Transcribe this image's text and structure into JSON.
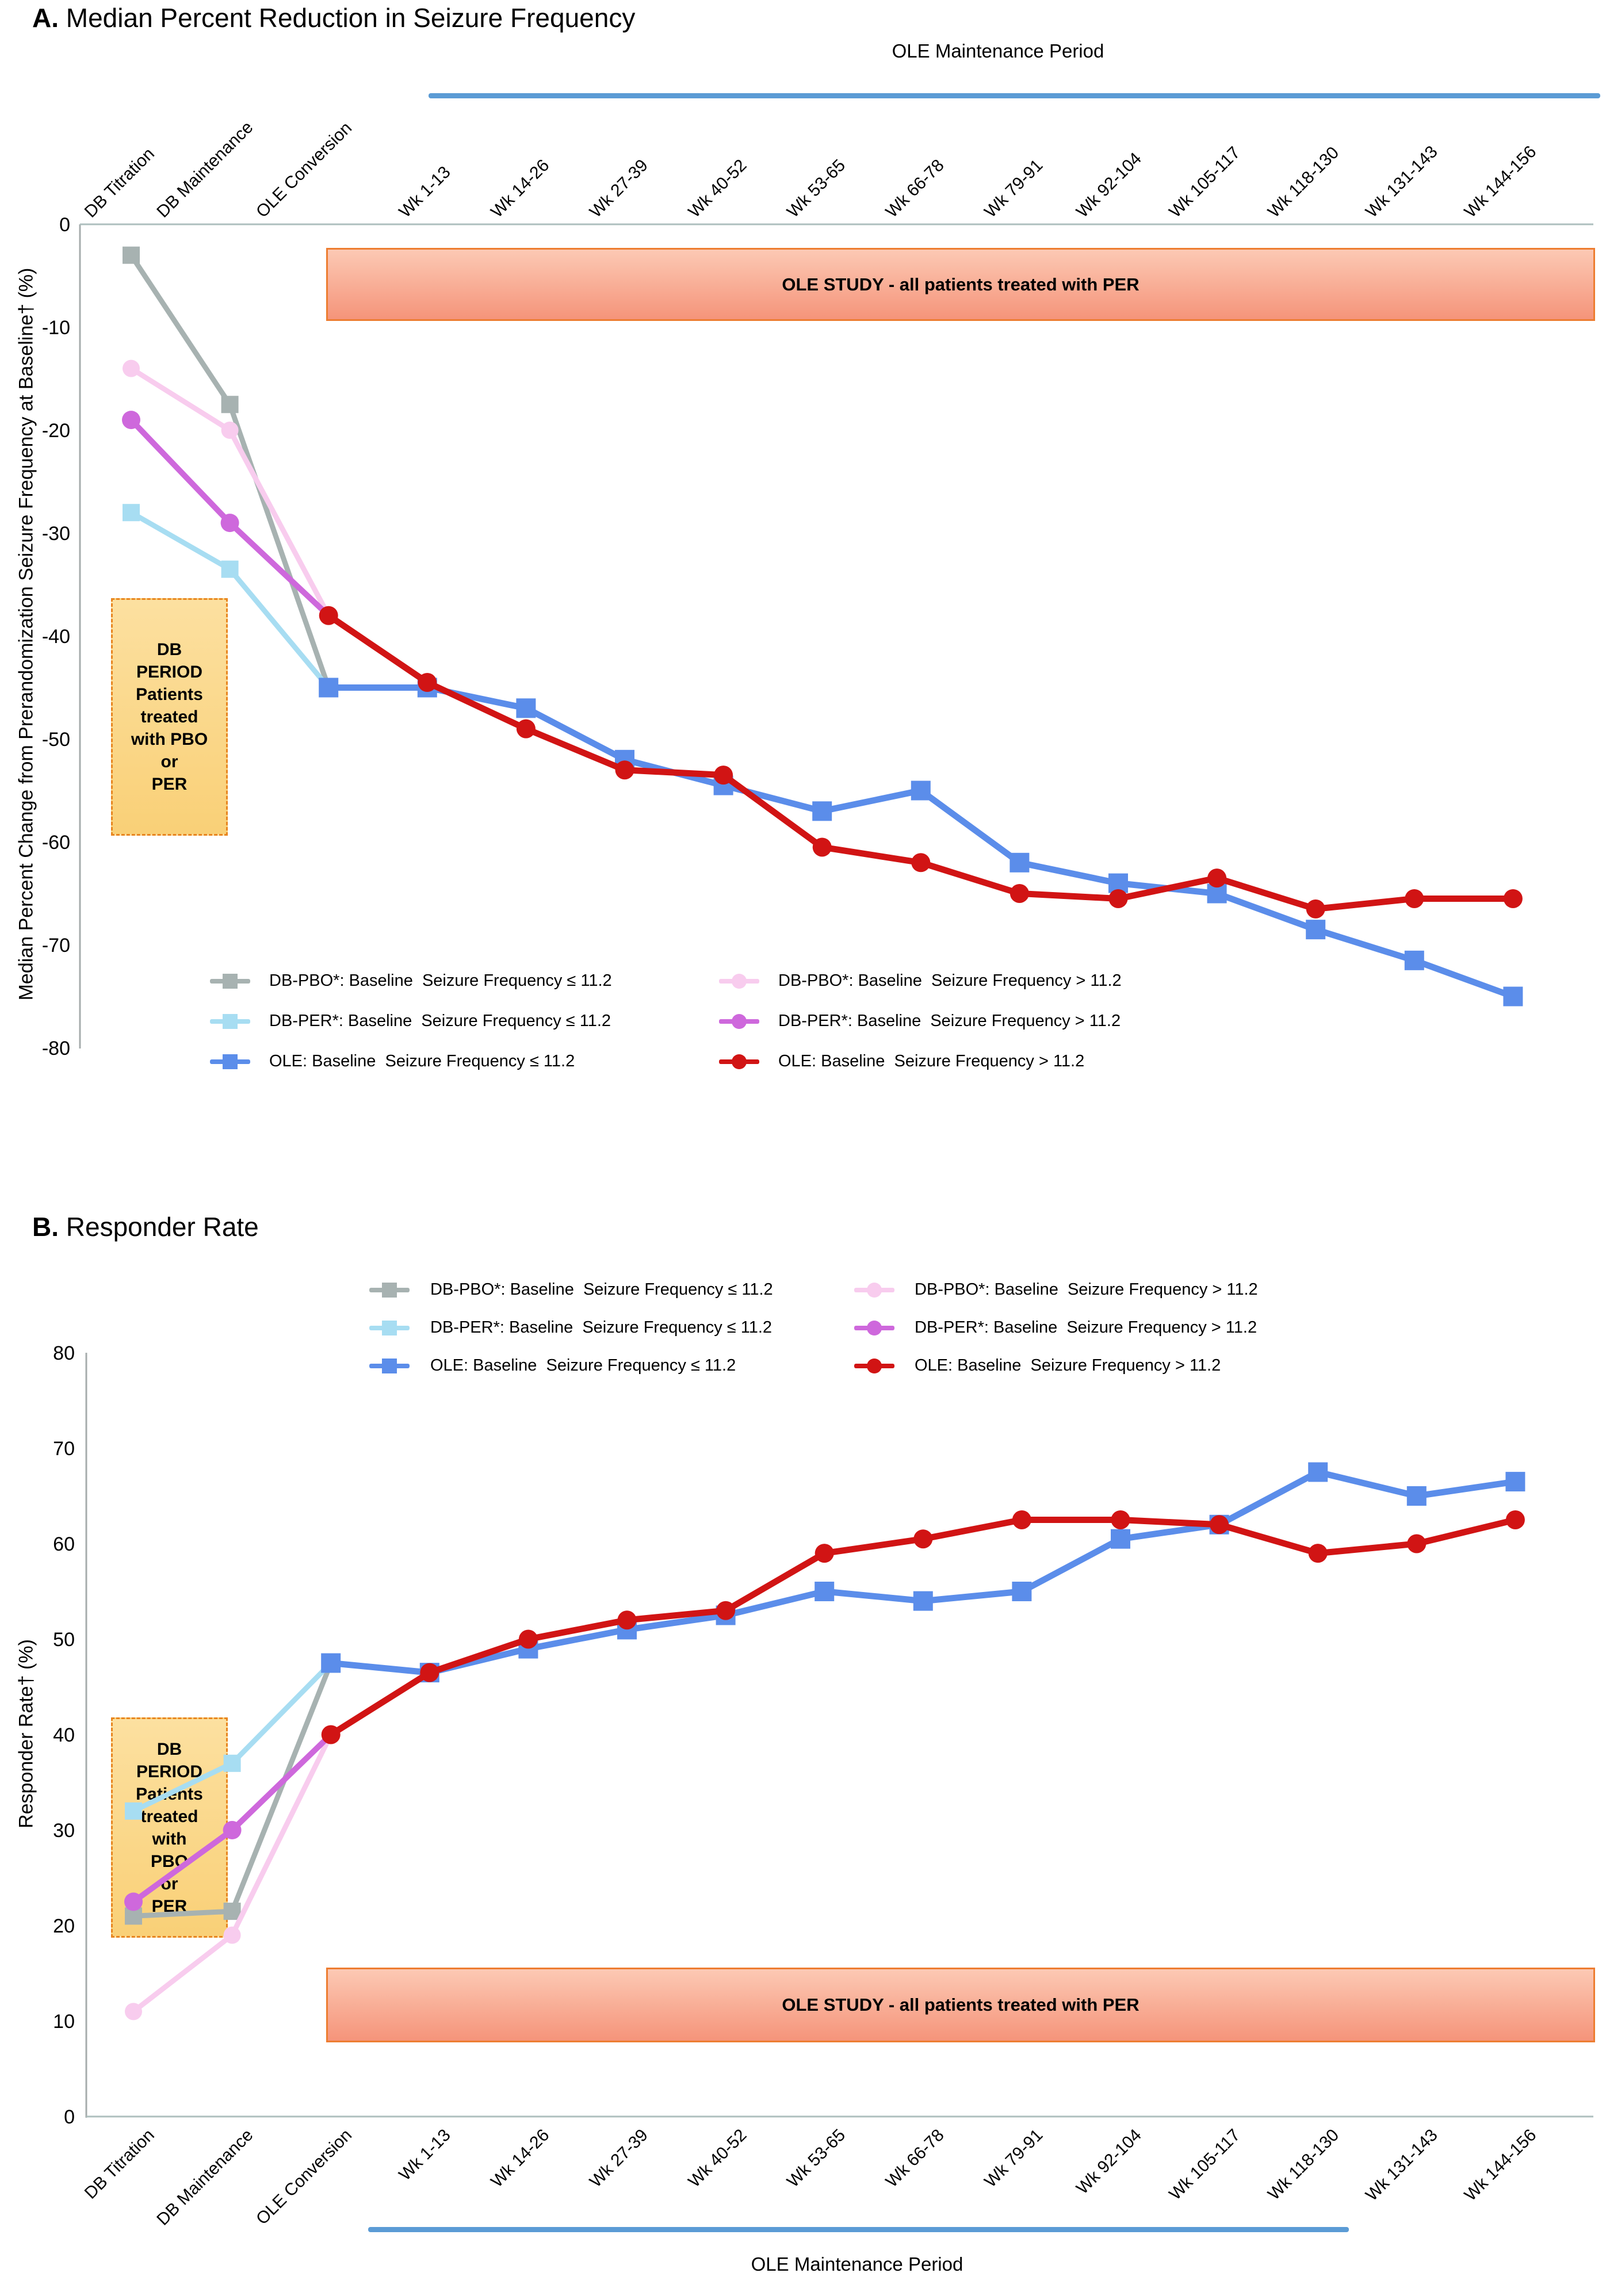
{
  "chart_data": [
    {
      "type": "line",
      "panel": "A",
      "title_prefix": "A.",
      "title": " Median Percent Reduction in Seizure Frequency",
      "ylabel": "Median Percent Change from Prerandomization Seizure Frequency at Baseline† (%)",
      "ylim": [
        -80,
        0
      ],
      "yticks": [
        0,
        -10,
        -20,
        -30,
        -40,
        -50,
        -60,
        -70,
        -80
      ],
      "grid": false,
      "legend_position": "inside-bottom",
      "maintenance_label": "OLE Maintenance Period",
      "banner_text": "OLE STUDY - all patients treated with PER",
      "db_period_text": "DB\nPERIOD\nPatients\ntreated\nwith PBO\nor\nPER",
      "categories": [
        "DB Titration",
        "DB Maintenance",
        "OLE Conversion",
        "Wk 1-13",
        "Wk 14-26",
        "Wk 27-39",
        "Wk 40-52",
        "Wk 53-65",
        "Wk 66-78",
        "Wk 79-91",
        "Wk 92-104",
        "Wk 105-117",
        "Wk 118-130",
        "Wk 131-143",
        "Wk 144-156"
      ],
      "series": [
        {
          "name": "DB-PBO: Baseline Seizure Frequency ≤ 11.2",
          "color": "#A7B2B1",
          "marker": "square",
          "width": 9,
          "msize": 30,
          "values": [
            -3,
            -17.5,
            -45,
            null,
            null,
            null,
            null,
            null,
            null,
            null,
            null,
            null,
            null,
            null,
            null
          ]
        },
        {
          "name": "DB-PBO: Baseline Seizure Frequency > 11.2",
          "color": "#F8CCEE",
          "marker": "circle",
          "width": 9,
          "msize": 30,
          "values": [
            -14,
            -20,
            -38,
            null,
            null,
            null,
            null,
            null,
            null,
            null,
            null,
            null,
            null,
            null,
            null
          ]
        },
        {
          "name": "DB-PER: Baseline Seizure Frequency ≤ 11.2",
          "color": "#A7DDF2",
          "marker": "square",
          "width": 9,
          "msize": 30,
          "values": [
            -28,
            -33.5,
            -45,
            null,
            null,
            null,
            null,
            null,
            null,
            null,
            null,
            null,
            null,
            null,
            null
          ]
        },
        {
          "name": "DB-PER: Baseline Seizure Frequency > 11.2",
          "color": "#CE68DC",
          "marker": "circle",
          "width": 10,
          "msize": 32,
          "values": [
            -19,
            -29,
            -38,
            null,
            null,
            null,
            null,
            null,
            null,
            null,
            null,
            null,
            null,
            null,
            null
          ]
        },
        {
          "name": "OLE: Baseline Seizure Frequency ≤ 11.2",
          "color": "#5B8DEA",
          "marker": "square",
          "width": 11,
          "msize": 34,
          "values": [
            null,
            null,
            -45,
            -45,
            -47,
            -52,
            -54.5,
            -57,
            -55,
            -62,
            -64,
            -65,
            -68.5,
            -71.5,
            -75
          ]
        },
        {
          "name": "OLE: Baseline Seizure Frequency > 11.2",
          "color": "#D11414",
          "marker": "circle",
          "width": 11,
          "msize": 33,
          "values": [
            null,
            null,
            -38,
            -44.5,
            -49,
            -53,
            -53.5,
            -60.5,
            -62,
            -65,
            -65.5,
            -63.5,
            -66.5,
            -65.5,
            -65.5
          ]
        }
      ],
      "legend": [
        {
          "col": 0,
          "row": 0,
          "series": 0,
          "label": "DB-PBO*: Baseline  Seizure Frequency ≤ 11.2"
        },
        {
          "col": 0,
          "row": 1,
          "series": 2,
          "label": "DB-PER*: Baseline  Seizure Frequency ≤ 11.2"
        },
        {
          "col": 0,
          "row": 2,
          "series": 4,
          "label": "OLE: Baseline  Seizure Frequency ≤ 11.2"
        },
        {
          "col": 1,
          "row": 0,
          "series": 1,
          "label": "DB-PBO*: Baseline  Seizure Frequency > 11.2"
        },
        {
          "col": 1,
          "row": 1,
          "series": 3,
          "label": "DB-PER*: Baseline  Seizure Frequency > 11.2"
        },
        {
          "col": 1,
          "row": 2,
          "series": 5,
          "label": "OLE: Baseline  Seizure Frequency > 11.2"
        }
      ]
    },
    {
      "type": "line",
      "panel": "B",
      "title_prefix": "B.",
      "title": " Responder Rate",
      "ylabel": "Responder Rate† (%)",
      "ylim": [
        0,
        80
      ],
      "yticks": [
        0,
        10,
        20,
        30,
        40,
        50,
        60,
        70,
        80
      ],
      "grid": false,
      "legend_position": "top",
      "maintenance_label": "OLE Maintenance Period",
      "banner_text": "OLE STUDY - all patients treated with PER",
      "db_period_text": "DB\nPERIOD\nPatients\ntreated\nwith\nPBO\nor\nPER",
      "categories": [
        "DB Titration",
        "DB Maintenance",
        "OLE Conversion",
        "Wk 1-13",
        "Wk 14-26",
        "Wk 27-39",
        "Wk 40-52",
        "Wk 53-65",
        "Wk 66-78",
        "Wk 79-91",
        "Wk 92-104",
        "Wk 105-117",
        "Wk 118-130",
        "Wk 131-143",
        "Wk 144-156"
      ],
      "series": [
        {
          "name": "DB-PBO: Baseline Seizure Frequency ≤ 11.2",
          "color": "#A7B2B1",
          "marker": "square",
          "width": 9,
          "msize": 30,
          "values": [
            21,
            21.5,
            47.5,
            null,
            null,
            null,
            null,
            null,
            null,
            null,
            null,
            null,
            null,
            null,
            null
          ]
        },
        {
          "name": "DB-PBO: Baseline Seizure Frequency > 11.2",
          "color": "#F8CCEE",
          "marker": "circle",
          "width": 9,
          "msize": 30,
          "values": [
            11,
            19,
            40,
            null,
            null,
            null,
            null,
            null,
            null,
            null,
            null,
            null,
            null,
            null,
            null
          ]
        },
        {
          "name": "DB-PER: Baseline Seizure Frequency ≤ 11.2",
          "color": "#A7DDF2",
          "marker": "square",
          "width": 9,
          "msize": 30,
          "values": [
            32,
            37,
            47.5,
            null,
            null,
            null,
            null,
            null,
            null,
            null,
            null,
            null,
            null,
            null,
            null
          ]
        },
        {
          "name": "DB-PER: Baseline Seizure Frequency > 11.2",
          "color": "#CE68DC",
          "marker": "circle",
          "width": 10,
          "msize": 32,
          "values": [
            22.5,
            30,
            40,
            null,
            null,
            null,
            null,
            null,
            null,
            null,
            null,
            null,
            null,
            null,
            null
          ]
        },
        {
          "name": "OLE: Baseline Seizure Frequency ≤ 11.2",
          "color": "#5B8DEA",
          "marker": "square",
          "width": 11,
          "msize": 34,
          "values": [
            null,
            null,
            47.5,
            46.5,
            49,
            51,
            52.5,
            55,
            54,
            55,
            60.5,
            62,
            67.5,
            65,
            66.5
          ]
        },
        {
          "name": "OLE: Baseline Seizure Frequency > 11.2",
          "color": "#D11414",
          "marker": "circle",
          "width": 11,
          "msize": 33,
          "values": [
            null,
            null,
            40,
            46.5,
            50,
            52,
            53,
            59,
            60.5,
            62.5,
            62.5,
            62,
            59,
            60,
            62.5
          ]
        }
      ],
      "legend": [
        {
          "col": 0,
          "row": 0,
          "series": 0,
          "label": "DB-PBO*: Baseline  Seizure Frequency ≤ 11.2"
        },
        {
          "col": 0,
          "row": 1,
          "series": 2,
          "label": "DB-PER*: Baseline  Seizure Frequency ≤ 11.2"
        },
        {
          "col": 0,
          "row": 2,
          "series": 4,
          "label": "OLE: Baseline  Seizure Frequency ≤ 11.2"
        },
        {
          "col": 1,
          "row": 0,
          "series": 1,
          "label": "DB-PBO*: Baseline  Seizure Frequency > 11.2"
        },
        {
          "col": 1,
          "row": 1,
          "series": 3,
          "label": "DB-PER*: Baseline  Seizure Frequency > 11.2"
        },
        {
          "col": 1,
          "row": 2,
          "series": 5,
          "label": "OLE: Baseline  Seizure Frequency > 11.2"
        }
      ]
    }
  ]
}
